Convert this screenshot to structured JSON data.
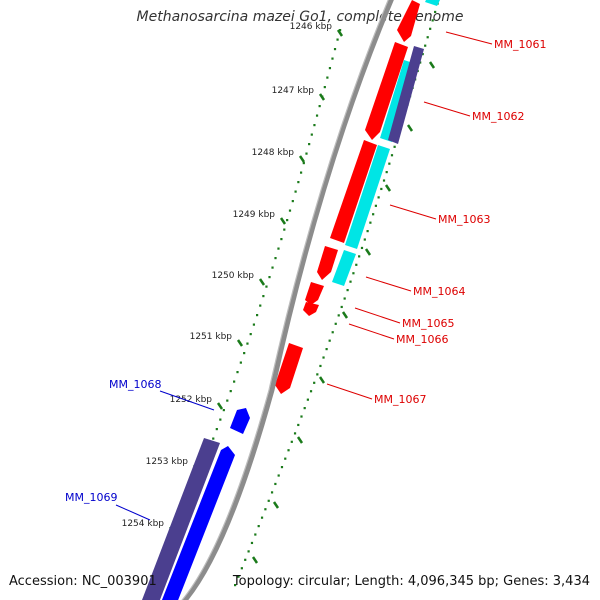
{
  "title": "Methanosarcina mazei Go1, complete genome",
  "accession_text": "Accession: NC_003901",
  "topology_text": "Topology: circular; Length: 4,096,345 bp; Genes: 3,434",
  "colors": {
    "backbone": "#8c8c8c",
    "ticks": "#1a7a1a",
    "forward_gene": "#ff0000",
    "reverse_gene": "#0000ff",
    "cyan_feature": "#00e5e5",
    "purple_feature": "#4b3f8f",
    "forward_label": "#dd0000",
    "reverse_label": "#0000cc"
  },
  "scale_labels": [
    "1246 kbp",
    "1247 kbp",
    "1248 kbp",
    "1249 kbp",
    "1250 kbp",
    "1251 kbp",
    "1252 kbp",
    "1253 kbp",
    "1254 kbp"
  ],
  "genes": [
    {
      "label": "MM_1061",
      "strand": "forward"
    },
    {
      "label": "MM_1062",
      "strand": "forward"
    },
    {
      "label": "MM_1063",
      "strand": "forward"
    },
    {
      "label": "MM_1064",
      "strand": "forward"
    },
    {
      "label": "MM_1065",
      "strand": "forward"
    },
    {
      "label": "MM_1066",
      "strand": "forward"
    },
    {
      "label": "MM_1067",
      "strand": "forward"
    },
    {
      "label": "MM_1068",
      "strand": "reverse"
    },
    {
      "label": "MM_1069",
      "strand": "reverse"
    }
  ]
}
